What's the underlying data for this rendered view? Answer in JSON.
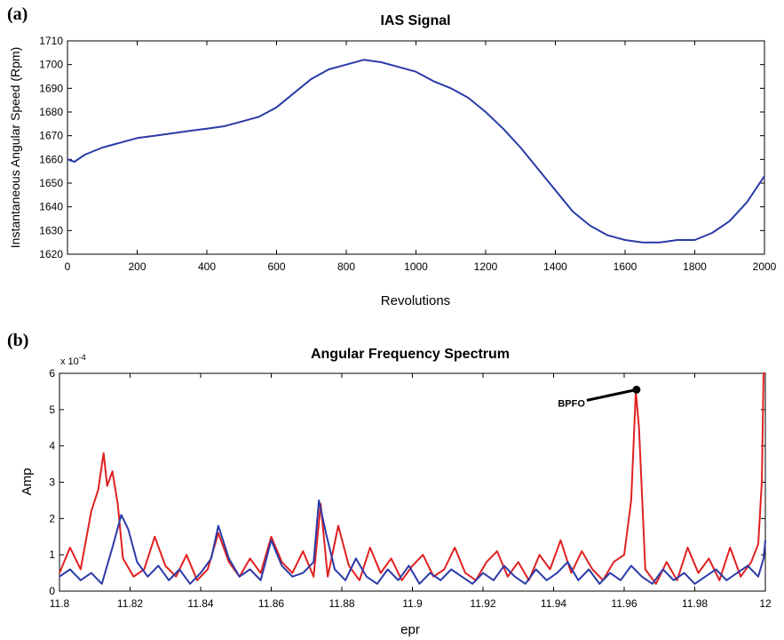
{
  "chart_data": [
    {
      "panel": "(a)",
      "type": "line",
      "title": "IAS Signal",
      "xlabel": "Revolutions",
      "ylabel": "Instantaneous Angular Speed (Rpm)",
      "xlim": [
        0,
        2000
      ],
      "ylim": [
        1620,
        1710
      ],
      "xticks": [
        0,
        200,
        400,
        600,
        800,
        1000,
        1200,
        1400,
        1600,
        1800,
        2000
      ],
      "yticks": [
        1620,
        1630,
        1640,
        1650,
        1660,
        1670,
        1680,
        1690,
        1700,
        1710
      ],
      "grid": false,
      "series": [
        {
          "color": "#2b3aa8",
          "x": [
            0,
            20,
            50,
            100,
            150,
            200,
            250,
            300,
            350,
            400,
            450,
            500,
            550,
            600,
            650,
            700,
            750,
            800,
            850,
            900,
            950,
            1000,
            1050,
            1100,
            1150,
            1200,
            1250,
            1300,
            1350,
            1400,
            1450,
            1500,
            1550,
            1600,
            1650,
            1700,
            1750,
            1800,
            1850,
            1900,
            1950,
            2000
          ],
          "y": [
            1660,
            1659,
            1662,
            1665,
            1667,
            1669,
            1670,
            1671,
            1672,
            1673,
            1674,
            1676,
            1678,
            1682,
            1688,
            1694,
            1698,
            1700,
            1702,
            1701,
            1699,
            1697,
            1693,
            1690,
            1686,
            1680,
            1673,
            1665,
            1656,
            1647,
            1638,
            1632,
            1628,
            1626,
            1625,
            1625,
            1626,
            1626,
            1629,
            1634,
            1642,
            1653
          ]
        }
      ]
    },
    {
      "panel": "(b)",
      "type": "line",
      "title": "Angular Frequency Spectrum",
      "xlabel": "epr",
      "ylabel": "Amp",
      "yscale_label": "x 10",
      "yscale_exp": "-4",
      "xlim": [
        11.8,
        12
      ],
      "ylim": [
        0,
        6
      ],
      "xticks": [
        "11.8",
        "11.82",
        "11.84",
        "11.86",
        "11.88",
        "11.9",
        "11.92",
        "11.94",
        "11.96",
        "11.98",
        "12"
      ],
      "yticks": [
        0,
        1,
        2,
        3,
        4,
        5,
        6
      ],
      "grid": false,
      "annotation": {
        "text": "BPFO",
        "x": 11.9635,
        "y": 5.55
      },
      "series": [
        {
          "color": "#e02020",
          "x": [
            11.8,
            11.803,
            11.806,
            11.809,
            11.811,
            11.8125,
            11.8135,
            11.815,
            11.8165,
            11.818,
            11.821,
            11.824,
            11.827,
            11.83,
            11.833,
            11.836,
            11.839,
            11.842,
            11.845,
            11.848,
            11.851,
            11.854,
            11.857,
            11.86,
            11.863,
            11.866,
            11.869,
            11.872,
            11.874,
            11.876,
            11.879,
            11.882,
            11.885,
            11.888,
            11.891,
            11.894,
            11.897,
            11.9,
            11.903,
            11.906,
            11.909,
            11.912,
            11.915,
            11.918,
            11.921,
            11.924,
            11.927,
            11.93,
            11.933,
            11.936,
            11.939,
            11.942,
            11.945,
            11.948,
            11.951,
            11.954,
            11.957,
            11.96,
            11.962,
            11.9633,
            11.9642,
            11.966,
            11.969,
            11.972,
            11.975,
            11.978,
            11.981,
            11.984,
            11.987,
            11.99,
            11.993,
            11.996,
            11.998,
            11.999,
            11.9995,
            12.0
          ],
          "y": [
            0.5,
            1.2,
            0.6,
            2.2,
            2.8,
            3.8,
            2.9,
            3.3,
            2.4,
            0.9,
            0.4,
            0.6,
            1.5,
            0.7,
            0.4,
            1.0,
            0.3,
            0.6,
            1.6,
            0.8,
            0.4,
            0.9,
            0.5,
            1.5,
            0.8,
            0.5,
            1.1,
            0.4,
            2.4,
            0.4,
            1.8,
            0.7,
            0.3,
            1.2,
            0.5,
            0.9,
            0.3,
            0.7,
            1.0,
            0.4,
            0.6,
            1.2,
            0.5,
            0.3,
            0.8,
            1.1,
            0.4,
            0.8,
            0.3,
            1.0,
            0.6,
            1.4,
            0.5,
            1.1,
            0.6,
            0.3,
            0.8,
            1.0,
            2.5,
            5.5,
            4.5,
            0.6,
            0.2,
            0.8,
            0.3,
            1.2,
            0.5,
            0.9,
            0.3,
            1.2,
            0.4,
            0.8,
            1.3,
            3.0,
            6.0,
            6.0
          ]
        },
        {
          "color": "#2b3aa8",
          "x": [
            11.8,
            11.803,
            11.806,
            11.809,
            11.812,
            11.815,
            11.8175,
            11.8195,
            11.822,
            11.825,
            11.828,
            11.831,
            11.834,
            11.837,
            11.84,
            11.843,
            11.845,
            11.848,
            11.851,
            11.854,
            11.857,
            11.86,
            11.863,
            11.866,
            11.869,
            11.872,
            11.8735,
            11.8755,
            11.878,
            11.881,
            11.884,
            11.887,
            11.89,
            11.893,
            11.896,
            11.899,
            11.902,
            11.905,
            11.908,
            11.911,
            11.914,
            11.917,
            11.92,
            11.923,
            11.926,
            11.929,
            11.932,
            11.935,
            11.938,
            11.941,
            11.944,
            11.947,
            11.95,
            11.953,
            11.956,
            11.959,
            11.962,
            11.965,
            11.968,
            11.971,
            11.974,
            11.977,
            11.98,
            11.983,
            11.986,
            11.989,
            11.992,
            11.995,
            11.998,
            11.9995,
            12.0
          ],
          "y": [
            0.4,
            0.6,
            0.3,
            0.5,
            0.2,
            1.2,
            2.1,
            1.7,
            0.8,
            0.4,
            0.7,
            0.3,
            0.6,
            0.2,
            0.5,
            0.9,
            1.8,
            0.9,
            0.4,
            0.6,
            0.3,
            1.4,
            0.7,
            0.4,
            0.5,
            0.8,
            2.5,
            1.6,
            0.6,
            0.3,
            0.9,
            0.4,
            0.2,
            0.6,
            0.3,
            0.7,
            0.2,
            0.5,
            0.3,
            0.6,
            0.4,
            0.2,
            0.5,
            0.3,
            0.7,
            0.4,
            0.2,
            0.6,
            0.3,
            0.5,
            0.8,
            0.3,
            0.6,
            0.2,
            0.5,
            0.3,
            0.7,
            0.4,
            0.2,
            0.6,
            0.3,
            0.5,
            0.2,
            0.4,
            0.6,
            0.3,
            0.5,
            0.7,
            0.4,
            0.9,
            1.4
          ]
        }
      ]
    }
  ]
}
